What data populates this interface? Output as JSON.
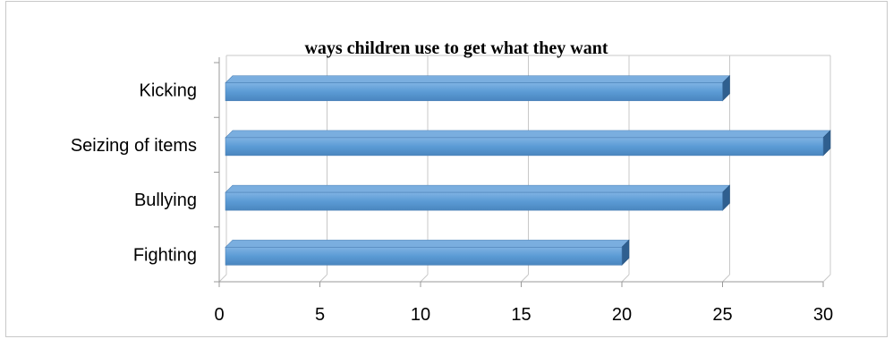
{
  "chart_data": {
    "type": "bar",
    "orientation": "horizontal",
    "title": "ways children use to get what they want",
    "xlabel": "",
    "ylabel": "",
    "categories": [
      "Kicking",
      "Seizing of items",
      "Bullying",
      "Fighting"
    ],
    "values": [
      25,
      30,
      25,
      20
    ],
    "xlim": [
      0,
      30
    ],
    "xticks": [
      "0",
      "5",
      "10",
      "15",
      "20",
      "25",
      "30"
    ],
    "grid": true,
    "legend": "none",
    "bar_color": "#5b9bd5",
    "style": "3d"
  }
}
